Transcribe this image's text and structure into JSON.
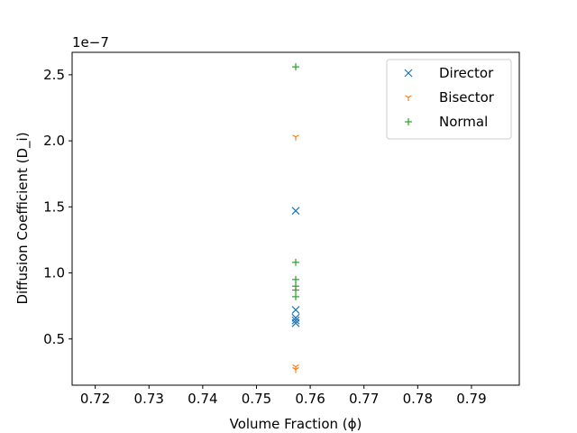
{
  "chart_data": {
    "type": "scatter",
    "xlabel": "Volume Fraction (ϕ)",
    "ylabel": "Diffusion Coefficient (D_i)",
    "y_offset_text": "1e−7",
    "xlim": [
      0.7157,
      0.7989
    ],
    "ylim": [
      0.15,
      2.67
    ],
    "xticks": [
      0.72,
      0.73,
      0.74,
      0.75,
      0.76,
      0.77,
      0.78,
      0.79
    ],
    "xtick_labels": [
      "0.72",
      "0.73",
      "0.74",
      "0.75",
      "0.76",
      "0.77",
      "0.78",
      "0.79"
    ],
    "yticks": [
      0.5,
      1.0,
      1.5,
      2.0,
      2.5
    ],
    "ytick_labels": [
      "0.5",
      "1.0",
      "1.5",
      "2.0",
      "2.5"
    ],
    "y_scale_multiplier": 1e-07,
    "grid": false,
    "legend_position": "top-right",
    "series": [
      {
        "name": "Director",
        "marker": "x",
        "color": "#1f77b4",
        "points": [
          {
            "x": 0.7573,
            "y": 1.47
          },
          {
            "x": 0.7573,
            "y": 0.72
          },
          {
            "x": 0.7573,
            "y": 0.66
          },
          {
            "x": 0.7573,
            "y": 0.64
          },
          {
            "x": 0.7573,
            "y": 0.62
          }
        ]
      },
      {
        "name": "Bisector",
        "marker": "tri_down",
        "color": "#ff7f0e",
        "points": [
          {
            "x": 0.7573,
            "y": 2.03
          },
          {
            "x": 0.7573,
            "y": 0.29
          },
          {
            "x": 0.7573,
            "y": 0.27
          }
        ]
      },
      {
        "name": "Normal",
        "marker": "plus",
        "color": "#2ca02c",
        "points": [
          {
            "x": 0.7573,
            "y": 2.56
          },
          {
            "x": 0.7573,
            "y": 1.08
          },
          {
            "x": 0.7573,
            "y": 0.95
          },
          {
            "x": 0.7573,
            "y": 0.9
          },
          {
            "x": 0.7573,
            "y": 0.87
          },
          {
            "x": 0.7573,
            "y": 0.82
          }
        ]
      }
    ]
  }
}
